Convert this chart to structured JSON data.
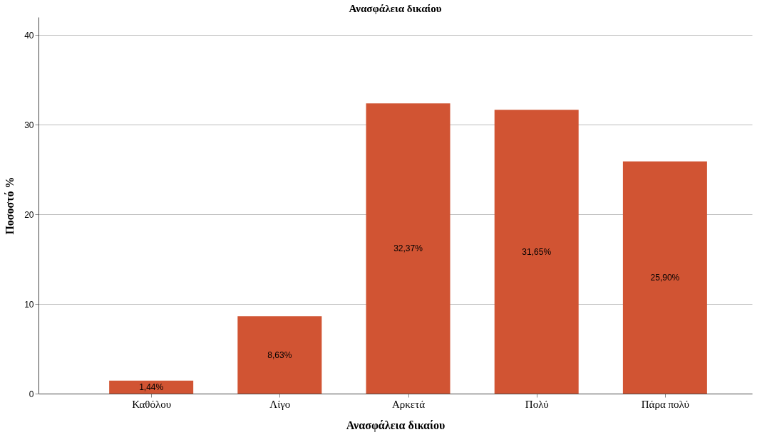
{
  "chart_data": {
    "type": "bar",
    "title": "Ανασφάλεια δικαίου",
    "xlabel": "Ανασφάλεια δικαίου",
    "ylabel": "Ποσοστό %",
    "categories": [
      "Καθόλου",
      "Λίγο",
      "Αρκετά",
      "Πολύ",
      "Πάρα πολύ"
    ],
    "values": [
      1.44,
      8.63,
      32.37,
      31.65,
      25.9
    ],
    "color": "#d15433",
    "value_labels": [
      "1,44%",
      "8,63%",
      "32,37%",
      "31,65%",
      "25,90%"
    ],
    "ylim": [
      0,
      42
    ],
    "yticks": [
      0,
      10,
      20,
      30,
      40
    ],
    "grid": "y"
  }
}
